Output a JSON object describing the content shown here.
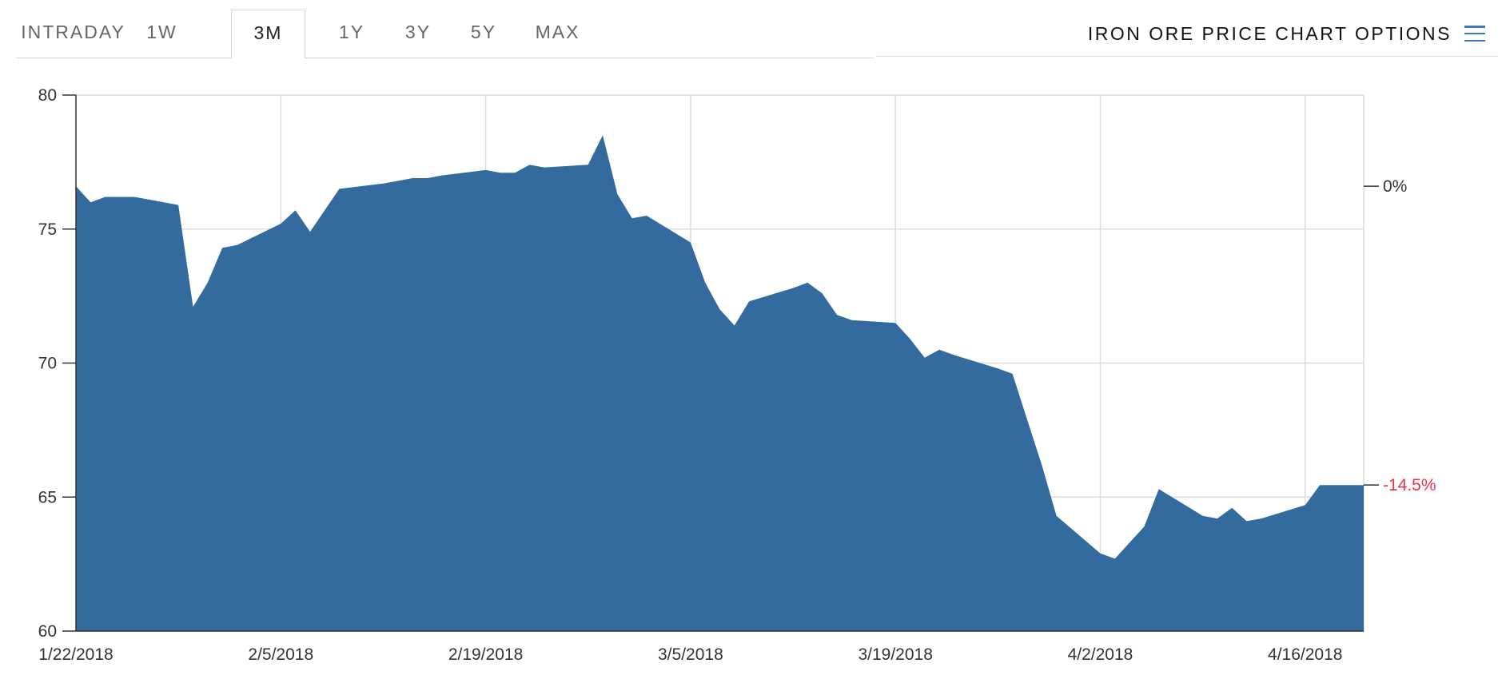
{
  "tabs": [
    {
      "label": "INTRADAY",
      "active": false
    },
    {
      "label": "1W",
      "active": false
    },
    {
      "label": "3M",
      "active": true
    },
    {
      "label": "1Y",
      "active": false
    },
    {
      "label": "3Y",
      "active": false
    },
    {
      "label": "5Y",
      "active": false
    },
    {
      "label": "MAX",
      "active": false
    }
  ],
  "options": {
    "label": "IRON ORE PRICE CHART OPTIONS",
    "icon": "hamburger-menu-icon"
  },
  "colors": {
    "area_fill": "#336b9f",
    "pct_negative": "#e8344a",
    "pct_neutral": "#333333",
    "grid": "#dcdcdc",
    "menu_icon": "#3a78c2"
  },
  "chart_data": {
    "type": "area",
    "x_start": "2018-01-22",
    "x_end": "2018-04-20",
    "ylim": [
      60,
      80
    ],
    "yticks": [
      "60",
      "65",
      "70",
      "75",
      "80"
    ],
    "xticks": [
      {
        "date": "2018-01-22",
        "label": "1/22/2018"
      },
      {
        "date": "2018-02-05",
        "label": "2/5/2018"
      },
      {
        "date": "2018-02-19",
        "label": "2/19/2018"
      },
      {
        "date": "2018-03-05",
        "label": "3/5/2018"
      },
      {
        "date": "2018-03-19",
        "label": "3/19/2018"
      },
      {
        "date": "2018-04-02",
        "label": "4/2/2018"
      },
      {
        "date": "2018-04-16",
        "label": "4/16/2018"
      }
    ],
    "grid": true,
    "percent_markers": [
      {
        "label": "0%",
        "value": 76.6,
        "tone": "neutral"
      },
      {
        "label": "-14.5%",
        "value": 65.45,
        "tone": "negative"
      }
    ],
    "series": [
      {
        "x": [
          "2018-01-22",
          "2018-01-23",
          "2018-01-24",
          "2018-01-25",
          "2018-01-26",
          "2018-01-29",
          "2018-01-30",
          "2018-01-31",
          "2018-02-01",
          "2018-02-02",
          "2018-02-05",
          "2018-02-06",
          "2018-02-07",
          "2018-02-08",
          "2018-02-09",
          "2018-02-12",
          "2018-02-13",
          "2018-02-14",
          "2018-02-15",
          "2018-02-16",
          "2018-02-19",
          "2018-02-20",
          "2018-02-21",
          "2018-02-22",
          "2018-02-23",
          "2018-02-26",
          "2018-02-27",
          "2018-02-28",
          "2018-03-01",
          "2018-03-02",
          "2018-03-05",
          "2018-03-06",
          "2018-03-07",
          "2018-03-08",
          "2018-03-09",
          "2018-03-12",
          "2018-03-13",
          "2018-03-14",
          "2018-03-15",
          "2018-03-16",
          "2018-03-19",
          "2018-03-20",
          "2018-03-21",
          "2018-03-22",
          "2018-03-23",
          "2018-03-26",
          "2018-03-27",
          "2018-03-28",
          "2018-03-29",
          "2018-03-30",
          "2018-04-02",
          "2018-04-03",
          "2018-04-04",
          "2018-04-05",
          "2018-04-06",
          "2018-04-09",
          "2018-04-10",
          "2018-04-11",
          "2018-04-12",
          "2018-04-13",
          "2018-04-16",
          "2018-04-17",
          "2018-04-18",
          "2018-04-19",
          "2018-04-20"
        ],
        "values": [
          76.6,
          76.0,
          76.2,
          76.2,
          76.2,
          75.9,
          72.1,
          73.0,
          74.3,
          74.4,
          75.2,
          75.7,
          74.9,
          75.7,
          76.5,
          76.7,
          76.8,
          76.9,
          76.9,
          77.0,
          77.2,
          77.1,
          77.1,
          77.4,
          77.3,
          77.4,
          78.5,
          76.3,
          75.4,
          75.5,
          74.5,
          73.0,
          72.0,
          71.4,
          72.3,
          72.8,
          73.0,
          72.6,
          71.8,
          71.6,
          71.5,
          70.9,
          70.2,
          70.5,
          70.3,
          69.8,
          69.6,
          67.9,
          66.2,
          64.3,
          62.9,
          62.7,
          63.3,
          63.9,
          65.3,
          64.3,
          64.2,
          64.6,
          64.1,
          64.2,
          64.7,
          65.45,
          65.45,
          65.45,
          65.45
        ]
      }
    ]
  }
}
